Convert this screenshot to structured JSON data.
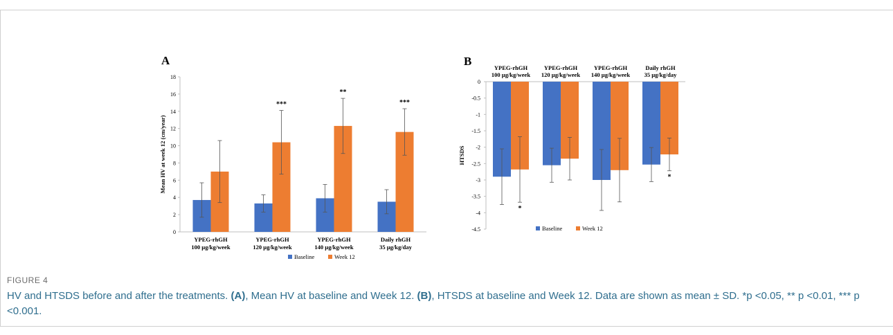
{
  "colors": {
    "baseline": "#4472C4",
    "week12": "#ED7D31",
    "axis": "#bfbfbf",
    "text": "#000000",
    "caption": "#2f6e8e"
  },
  "chart_data": [
    {
      "type": "bar",
      "panel_label": "A",
      "ylabel": "Mean HV at week 12 (cm/year)",
      "xlabel": "",
      "ylim": [
        0,
        18
      ],
      "yticks": [
        0,
        2,
        4,
        6,
        8,
        10,
        12,
        14,
        16,
        18
      ],
      "categories": [
        [
          "YPEG-rhGH",
          "100 µg/kg/week"
        ],
        [
          "YPEG-rhGH",
          "120 µg/kg/week"
        ],
        [
          "YPEG-rhGH",
          "140 µg/kg/week"
        ],
        [
          "Daily rhGH",
          "35 µg/kg/day"
        ]
      ],
      "series": [
        {
          "name": "Baseline",
          "values": [
            3.7,
            3.3,
            3.9,
            3.5
          ],
          "errors": [
            2.0,
            1.0,
            1.6,
            1.4
          ]
        },
        {
          "name": "Week 12",
          "values": [
            7.0,
            10.4,
            12.3,
            11.6
          ],
          "errors": [
            3.6,
            3.7,
            3.2,
            2.7
          ]
        }
      ],
      "annotations": [
        "",
        "***",
        "**",
        "***"
      ],
      "legend": "bottom",
      "grid": false
    },
    {
      "type": "bar",
      "panel_label": "B",
      "ylabel": "HTSDS",
      "xlabel": "",
      "ylim": [
        -4.5,
        0
      ],
      "yticks": [
        0,
        -0.5,
        -1,
        -1.5,
        -2,
        -2.5,
        -3,
        -3.5,
        -4,
        -4.5
      ],
      "categories": [
        [
          "YPEG-rhGH",
          "100 µg/kg/week"
        ],
        [
          "YPEG-rhGH",
          "120 µg/kg/week"
        ],
        [
          "YPEG-rhGH",
          "140 µg/kg/week"
        ],
        [
          "Daily rhGH",
          "35 µg/kg/day"
        ]
      ],
      "series": [
        {
          "name": "Baseline",
          "values": [
            -2.9,
            -2.55,
            -3.0,
            -2.53
          ],
          "errors": [
            0.85,
            0.52,
            0.93,
            0.52
          ]
        },
        {
          "name": "Week 12",
          "values": [
            -2.68,
            -2.35,
            -2.7,
            -2.22
          ],
          "errors": [
            1.0,
            0.65,
            0.97,
            0.5
          ]
        }
      ],
      "annotations": [
        "*",
        "",
        "",
        "*"
      ],
      "legend": "bottom",
      "grid": false
    }
  ],
  "caption": {
    "figure_label": "FIGURE 4",
    "text_parts": [
      "HV and HTSDS before and after the treatments. ",
      "(A)",
      ", Mean HV at baseline and Week 12. ",
      "(B)",
      ", HTSDS at baseline and Week 12. Data are shown as mean ± SD. *p <0.05, ** p <0.01, *** p <0.001."
    ]
  }
}
